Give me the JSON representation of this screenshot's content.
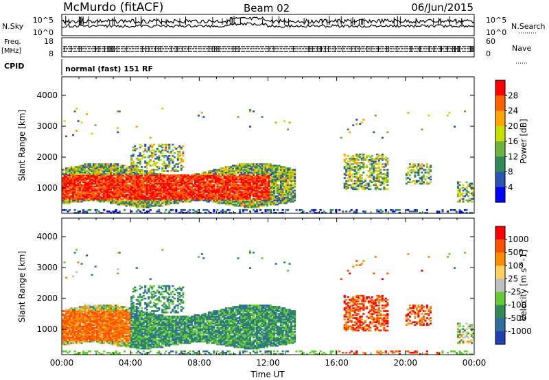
{
  "header": {
    "station": "McMurdo (fitACF)",
    "beam": "Beam 02",
    "date": "06/Jun/2015"
  },
  "top_panels": {
    "nsky_label": "N.Sky",
    "nsky_ticks": [
      "10^5",
      "10^0"
    ],
    "nsearch_label": "N.Search",
    "nsearch_ticks": [
      "10^5",
      "10^0"
    ],
    "freq_label": "Freq.",
    "freq_unit": "[MHz]",
    "freq_ticks": [
      "18",
      "8"
    ],
    "nave_label": "Nave",
    "nave_ticks": [
      "60",
      "0"
    ],
    "cpid_label": "CPID",
    "cpid_text": "normal (fast) 151 RF"
  },
  "chart_data": [
    {
      "type": "heatmap",
      "name": "power",
      "xlabel": "",
      "ylabel": "Slant Range [km]",
      "xlim_hours": [
        0,
        24
      ],
      "ylim": [
        180,
        4600
      ],
      "y_ticks": [
        "1000",
        "2000",
        "3000",
        "4000"
      ],
      "colorbar": {
        "label": "Power [dB]",
        "ticks": [
          "4",
          "8",
          "12",
          "16",
          "20",
          "24",
          "28"
        ],
        "colors": [
          "#0000ff",
          "#2a55b3",
          "#2e8b57",
          "#6fb33a",
          "#c8e000",
          "#ffa500",
          "#ff6000",
          "#ff0000"
        ]
      }
    },
    {
      "type": "heatmap",
      "name": "velocity",
      "xlabel": "Time UT",
      "ylabel": "Slant Range [km]",
      "xlim_hours": [
        0,
        24
      ],
      "ylim": [
        180,
        4600
      ],
      "x_ticks": [
        "00:00",
        "04:00",
        "08:00",
        "12:00",
        "16:00",
        "20:00",
        "00:00"
      ],
      "y_ticks": [
        "1000",
        "2000",
        "3000",
        "4000"
      ],
      "colorbar": {
        "label": "Velocity [m s^-1]",
        "ticks": [
          "1000",
          "500",
          "100",
          "25",
          "-25",
          "-100",
          "-500",
          "-1000"
        ],
        "colors": [
          "#1e40b0",
          "#2e6ea0",
          "#2e8b57",
          "#66cc33",
          "#c0c0c0",
          "#ffd060",
          "#ff8c00",
          "#ff5000",
          "#ff0000"
        ]
      }
    }
  ]
}
